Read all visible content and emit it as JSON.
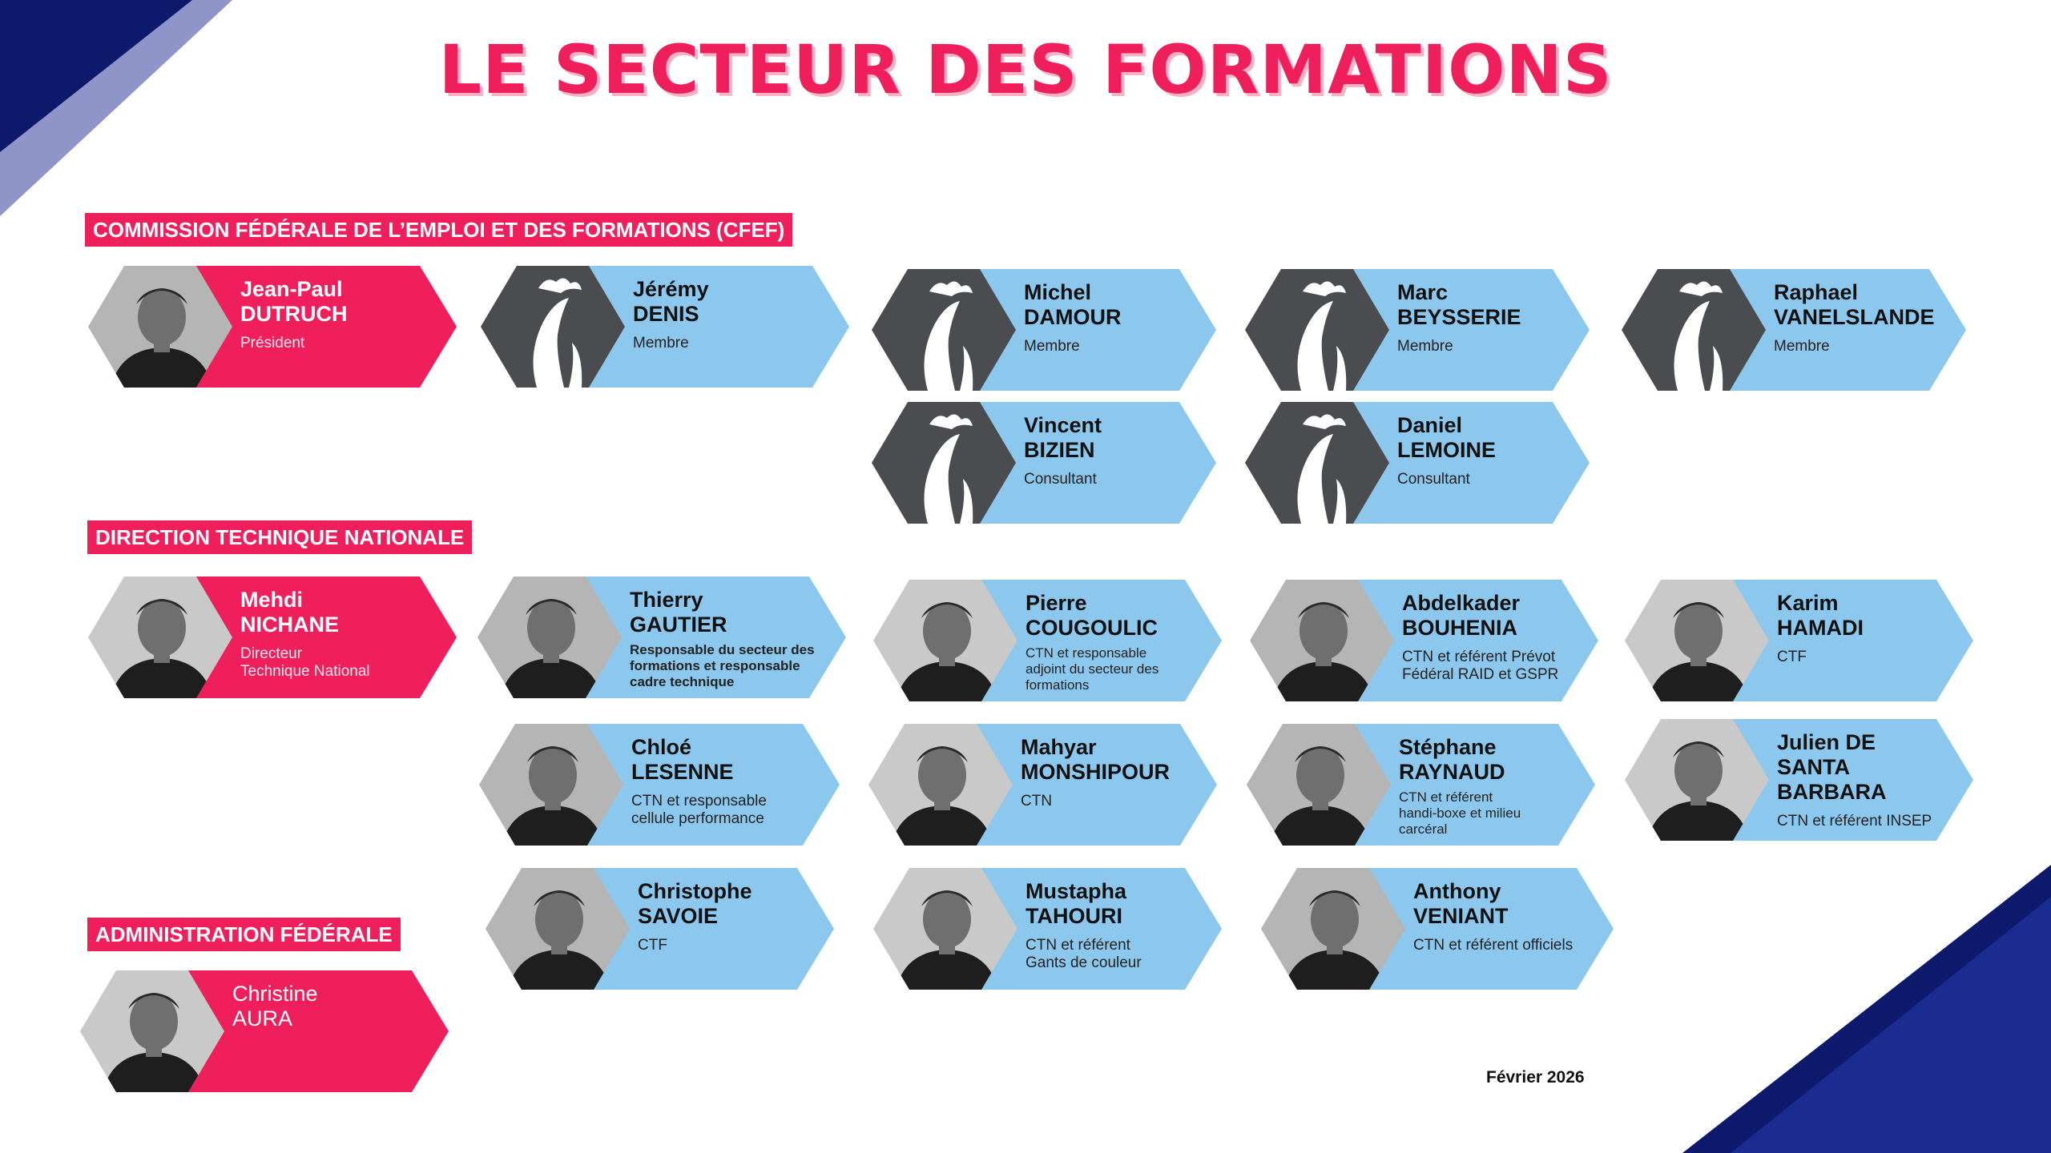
{
  "title": "LE SECTEUR DES FORMATIONS",
  "colors": {
    "accent": "#ef1f5c",
    "card_blue": "#8cc8ee",
    "hex_dark": "#4a4c50",
    "navy": "#0d1a6b"
  },
  "sections": {
    "cfef": "COMMISSION FÉDÉRALE DE L’EMPLOI ET DES FORMATIONS (CFEF)",
    "dtn": "DIRECTION TECHNIQUE NATIONALE",
    "admin": "ADMINISTRATION FÉDÉRALE"
  },
  "people": [
    {
      "name": "Jean-Paul\nDUTRUCH",
      "role": "Président",
      "style": "pink",
      "avatar": "photo"
    },
    {
      "name": "Jérémy\nDENIS",
      "role": "Membre",
      "style": "blue",
      "avatar": "rooster-icon"
    },
    {
      "name": "Michel\nDAMOUR",
      "role": "Membre",
      "style": "blue",
      "avatar": "rooster-icon"
    },
    {
      "name": "Marc\nBEYSSERIE",
      "role": "Membre",
      "style": "blue",
      "avatar": "rooster-icon"
    },
    {
      "name": "Raphael\nVANELSLANDE",
      "role": "Membre",
      "style": "blue",
      "avatar": "rooster-icon"
    },
    {
      "name": "Vincent\nBIZIEN",
      "role": "Consultant",
      "style": "blue",
      "avatar": "rooster-icon"
    },
    {
      "name": "Daniel\nLEMOINE",
      "role": "Consultant",
      "style": "blue",
      "avatar": "rooster-icon"
    },
    {
      "name": "Mehdi\nNICHANE",
      "role": "Directeur\nTechnique National",
      "style": "pink",
      "avatar": "photo"
    },
    {
      "name": "Thierry\nGAUTIER",
      "role": "Responsable du secteur des\nformations et responsable\ncadre technique",
      "style": "blue",
      "avatar": "photo"
    },
    {
      "name": "Pierre\nCOUGOULIC",
      "role": "CTN et responsable\nadjoint du secteur des\nformations",
      "style": "blue",
      "avatar": "photo"
    },
    {
      "name": "Abdelkader\nBOUHENIA",
      "role": "CTN et référent Prévot\nFédéral RAID et GSPR",
      "style": "blue",
      "avatar": "photo"
    },
    {
      "name": "Karim\nHAMADI",
      "role": "CTF",
      "style": "blue",
      "avatar": "photo"
    },
    {
      "name": "Chloé\nLESENNE",
      "role": "CTN et responsable\ncellule performance",
      "style": "blue",
      "avatar": "photo"
    },
    {
      "name": "Mahyar\nMONSHIPOUR",
      "role": "CTN",
      "style": "blue",
      "avatar": "photo"
    },
    {
      "name": "Stéphane\nRAYNAUD",
      "role": "CTN et référent\nhandi-boxe et milieu\ncarcéral",
      "style": "blue",
      "avatar": "photo"
    },
    {
      "name": "Julien DE\nSANTA BARBARA",
      "role": "CTN et référent INSEP",
      "style": "blue",
      "avatar": "photo"
    },
    {
      "name": "Christophe\nSAVOIE",
      "role": "CTF",
      "style": "blue",
      "avatar": "photo"
    },
    {
      "name": "Mustapha\nTAHOURI",
      "role": "CTN et référent\nGants de couleur",
      "style": "blue",
      "avatar": "photo"
    },
    {
      "name": "Anthony\nVENIANT",
      "role": "CTN et référent officiels",
      "style": "blue",
      "avatar": "photo"
    },
    {
      "name": "Christine\nAURA",
      "role": "",
      "style": "pink",
      "avatar": "photo"
    }
  ],
  "footer_date": "Février 2026"
}
